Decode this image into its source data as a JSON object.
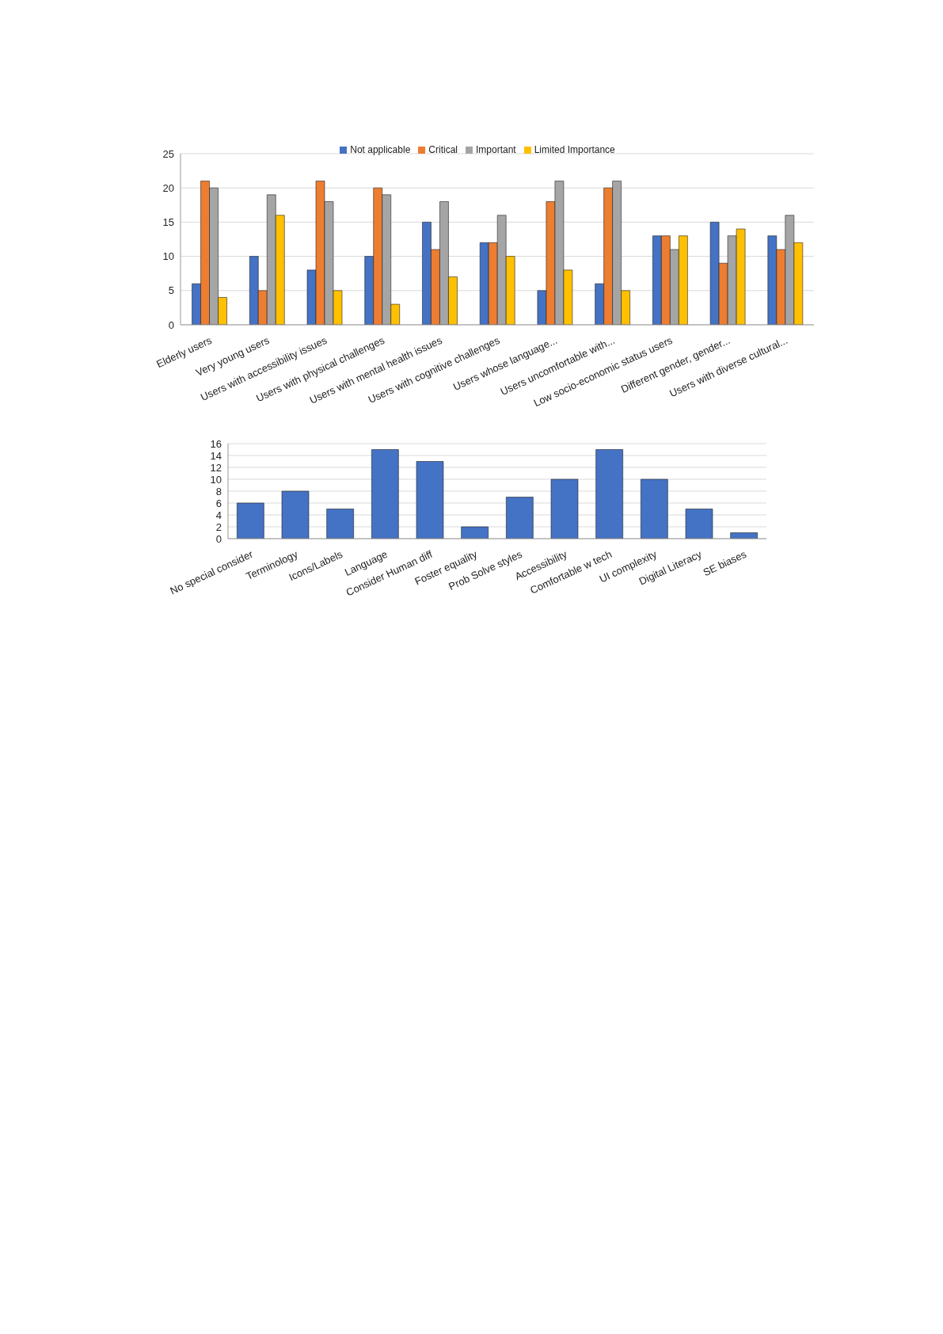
{
  "chart_data": [
    {
      "type": "bar",
      "categories": [
        "Elderly users",
        "Very young users",
        "Users with accessibility issues",
        "Users with physical challenges",
        "Users with mental health issues",
        "Users with cognitive challenges",
        "Users whose language...",
        "Users uncomfortable with...",
        "Low socio-economic status users",
        "Different gender, gender...",
        "Users with diverse cultural..."
      ],
      "series": [
        {
          "name": "Not applicable",
          "color": "#4472c4",
          "values": [
            6,
            10,
            8,
            10,
            15,
            12,
            5,
            6,
            13,
            15,
            13
          ]
        },
        {
          "name": "Critical",
          "color": "#ed7d31",
          "values": [
            21,
            5,
            21,
            20,
            11,
            12,
            18,
            20,
            13,
            9,
            11
          ]
        },
        {
          "name": "Important",
          "color": "#a5a5a5",
          "values": [
            20,
            19,
            18,
            19,
            18,
            16,
            21,
            21,
            11,
            13,
            16
          ]
        },
        {
          "name": "Limited Importance",
          "color": "#ffc000",
          "values": [
            4,
            16,
            5,
            3,
            7,
            10,
            8,
            5,
            13,
            14,
            12
          ]
        }
      ],
      "ylim": [
        0,
        25
      ],
      "yticks": [
        0,
        5,
        10,
        15,
        20,
        25
      ],
      "grid": "y",
      "legend": "top"
    },
    {
      "type": "bar",
      "categories": [
        "No special consider",
        "Terminology",
        "Icons/Labels",
        "Language",
        "Consider Human diff",
        "Foster equality",
        "Prob Solve styles",
        "Accessibility",
        "Comfortable w tech",
        "UI complexity",
        "Digital Literacy",
        "SE biases"
      ],
      "series": [
        {
          "color": "#4472c4",
          "values": [
            6,
            8,
            5,
            15,
            13,
            2,
            7,
            10,
            15,
            10,
            5,
            1
          ]
        }
      ],
      "ylim": [
        0,
        16
      ],
      "yticks": [
        0,
        2,
        4,
        6,
        8,
        10,
        12,
        14,
        16
      ],
      "grid": "y"
    }
  ]
}
